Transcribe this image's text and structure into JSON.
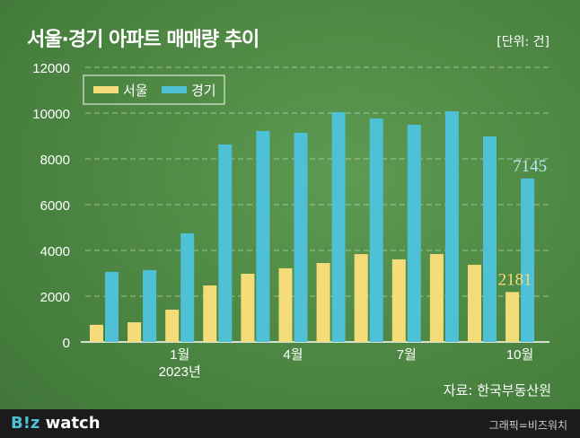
{
  "title": "서울·경기 아파트 매매량 추이",
  "unit": "[단위: 건]",
  "source": "자료: 한국부동산원",
  "footer": {
    "logo": "B!z watch",
    "credit": "그래픽=비즈워치"
  },
  "colors": {
    "seoul": "#f5dc7a",
    "gyeonggi": "#4ec1d6"
  },
  "chart_data": {
    "type": "bar",
    "categories": [
      "",
      "",
      "1월",
      "",
      "",
      "4월",
      "",
      "",
      "7월",
      "",
      "",
      "10월"
    ],
    "year_label": "2023년",
    "ylim": [
      0,
      12000
    ],
    "yticks": [
      "0",
      "2000",
      "4000",
      "6000",
      "8000",
      "10000",
      "12000"
    ],
    "grid": true,
    "legend": "top-left",
    "series": [
      {
        "name": "서울",
        "values": [
          750,
          860,
          1410,
          2470,
          2980,
          3220,
          3450,
          3840,
          3610,
          3840,
          3370,
          2181
        ]
      },
      {
        "name": "경기",
        "values": [
          3060,
          3140,
          4750,
          8630,
          9220,
          9140,
          10040,
          9760,
          9490,
          10080,
          8980,
          7145
        ]
      }
    ],
    "annotations": [
      "2181",
      "7145"
    ]
  }
}
